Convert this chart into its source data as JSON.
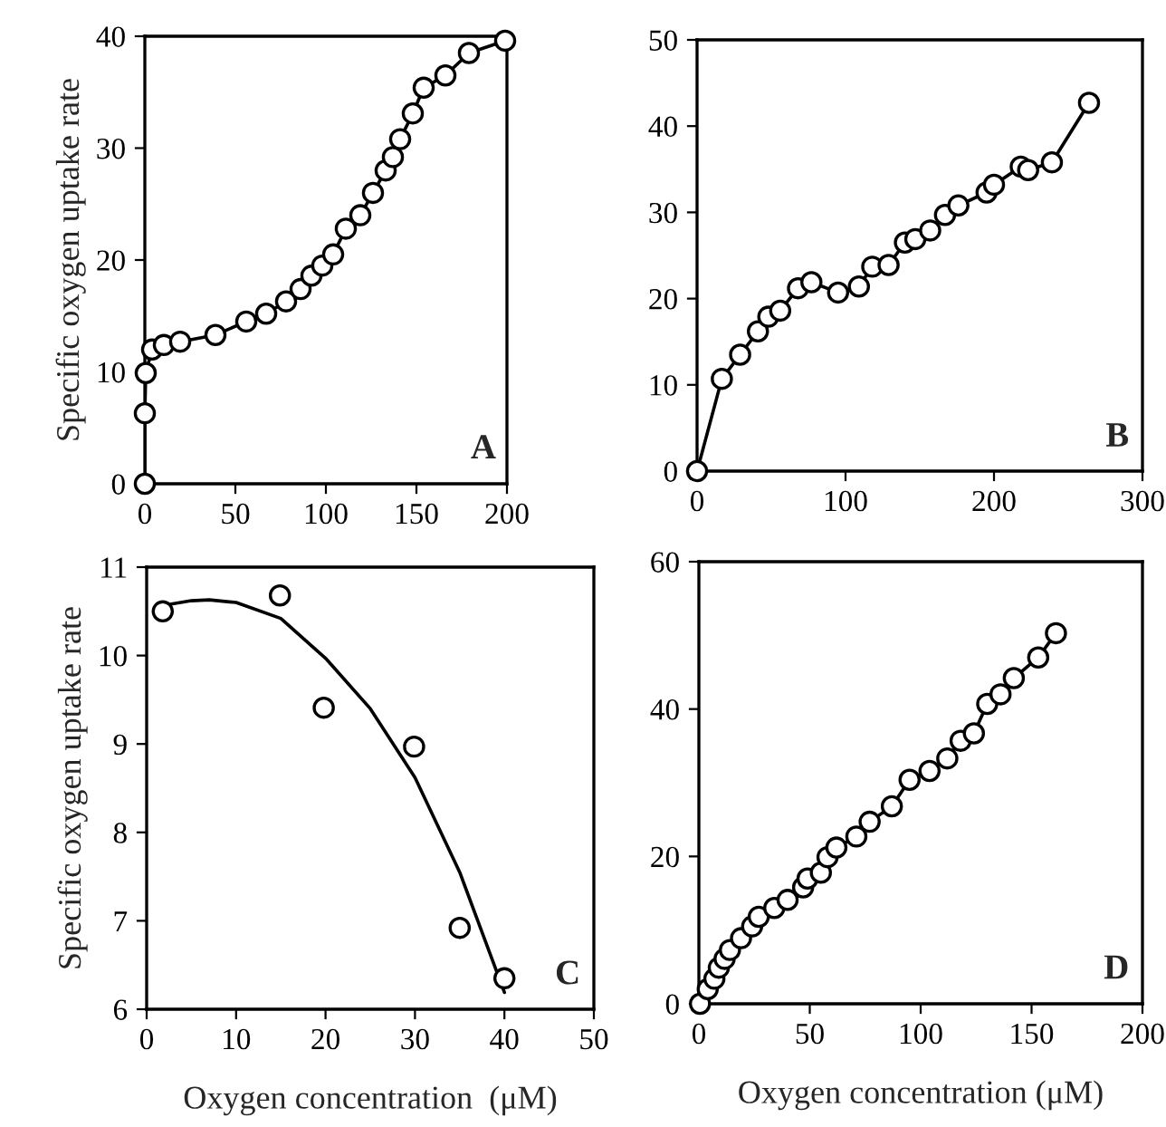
{
  "chart_data": [
    {
      "type": "line",
      "ylabel": "Specific oxygen uptake rate",
      "annotations": [
        "A"
      ],
      "marker": "circle",
      "line_style": "solid",
      "grid": false,
      "legend": false,
      "xlim": [
        0,
        200
      ],
      "xticks": [
        0,
        50,
        100,
        150,
        200
      ],
      "ylim": [
        0,
        40
      ],
      "yticks": [
        0,
        10,
        20,
        30,
        40
      ],
      "series": [
        {
          "color": "#000000",
          "x": [
            0,
            0,
            0.5,
            4,
            10.5,
            19.5,
            39,
            56,
            67,
            78,
            86,
            92,
            98,
            104,
            111,
            119,
            126,
            133,
            137,
            141,
            148,
            154,
            166,
            179,
            199
          ],
          "values": [
            0,
            6.3,
            9.9,
            12.0,
            12.4,
            12.7,
            13.3,
            14.5,
            15.2,
            16.3,
            17.4,
            18.6,
            19.5,
            20.5,
            22.8,
            24.0,
            26.0,
            28.0,
            29.2,
            30.8,
            33.1,
            35.4,
            36.5,
            38.5,
            39.6
          ]
        }
      ]
    },
    {
      "type": "line",
      "annotations": [
        "B"
      ],
      "marker": "circle",
      "line_style": "solid",
      "grid": false,
      "legend": false,
      "xlim": [
        0,
        300
      ],
      "xticks": [
        0,
        100,
        200,
        300
      ],
      "ylim": [
        0,
        50
      ],
      "yticks": [
        0,
        10,
        20,
        30,
        40,
        50
      ],
      "series": [
        {
          "color": "#000000",
          "x": [
            0,
            16.7,
            29,
            41,
            48,
            56,
            68,
            77,
            95,
            109,
            118,
            129,
            140,
            147,
            157,
            167,
            176,
            195,
            200,
            218,
            223,
            239,
            264
          ],
          "values": [
            0,
            10.7,
            13.5,
            16.2,
            17.9,
            18.6,
            21.2,
            21.9,
            20.7,
            21.4,
            23.7,
            23.9,
            26.5,
            26.9,
            27.9,
            29.7,
            30.8,
            32.3,
            33.2,
            35.3,
            34.9,
            35.8,
            42.7
          ]
        }
      ]
    },
    {
      "type": "scatter",
      "xlabel": "Oxygen concentration  (μM)",
      "ylabel": "Specific oxygen uptake rate",
      "annotations": [
        "C"
      ],
      "marker": "circle",
      "grid": false,
      "legend": false,
      "xlim": [
        0,
        50
      ],
      "xticks": [
        0,
        10,
        20,
        30,
        40,
        50
      ],
      "ylim": [
        6,
        11
      ],
      "yticks": [
        6,
        7,
        8,
        9,
        10,
        11
      ],
      "series": [
        {
          "color": "#000000",
          "x": [
            1.8,
            14.9,
            19.8,
            29.9,
            35.0,
            40.0
          ],
          "values": [
            10.5,
            10.68,
            9.41,
            8.97,
            6.92,
            6.35
          ]
        },
        {
          "type": "line",
          "marker": "none",
          "color": "#000000",
          "x": [
            2,
            5,
            7,
            10,
            15,
            20,
            25,
            30,
            35,
            40
          ],
          "values": [
            10.57,
            10.62,
            10.63,
            10.6,
            10.42,
            9.97,
            9.4,
            8.62,
            7.55,
            6.19
          ]
        }
      ]
    },
    {
      "type": "line",
      "xlabel": "Oxygen concentration (μM)",
      "annotations": [
        "D"
      ],
      "marker": "circle",
      "line_style": "solid",
      "grid": false,
      "legend": false,
      "xlim": [
        0,
        200
      ],
      "xticks": [
        0,
        50,
        100,
        150,
        200
      ],
      "ylim": [
        0,
        60
      ],
      "yticks": [
        0,
        20,
        40,
        60
      ],
      "series": [
        {
          "color": "#000000",
          "x": [
            0.5,
            4,
            7,
            9,
            11.6,
            14,
            19,
            24,
            27,
            34,
            40,
            47,
            49,
            55,
            58,
            62,
            71,
            77,
            87,
            95,
            104,
            112,
            118,
            124,
            130,
            136,
            142,
            153,
            161
          ],
          "values": [
            0,
            2.0,
            3.4,
            4.9,
            6.1,
            7.3,
            8.9,
            10.5,
            11.8,
            13.0,
            14.1,
            15.8,
            17.0,
            17.8,
            19.9,
            21.2,
            22.7,
            24.7,
            26.8,
            30.4,
            31.6,
            33.3,
            35.7,
            36.7,
            40.7,
            42.0,
            44.2,
            47.0,
            50.3
          ]
        }
      ]
    }
  ]
}
